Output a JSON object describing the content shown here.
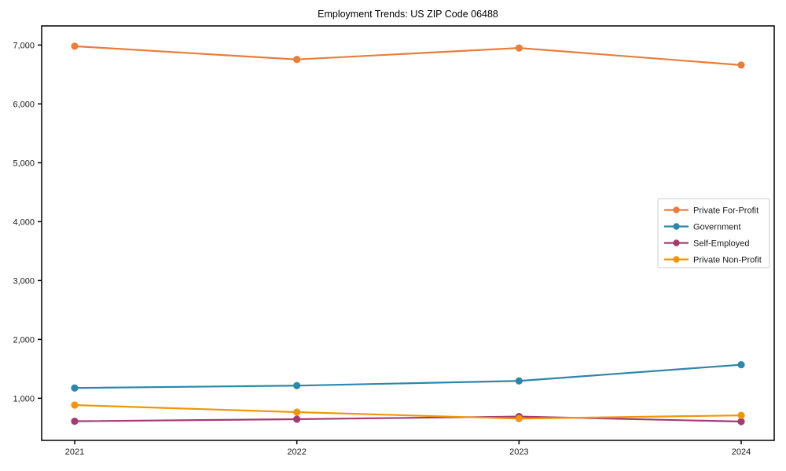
{
  "chart_data": {
    "type": "line",
    "title": "Employment Trends: US ZIP Code 06488",
    "xlabel": "",
    "ylabel": "",
    "categories": [
      "2021",
      "2022",
      "2023",
      "2024"
    ],
    "series": [
      {
        "name": "Private For-Profit",
        "color": "#E87D3C",
        "values": [
          6980,
          6755,
          6950,
          6660
        ]
      },
      {
        "name": "Government",
        "color": "#2E86AB",
        "values": [
          1175,
          1215,
          1295,
          1570
        ]
      },
      {
        "name": "Self-Employed",
        "color": "#A23B72",
        "values": [
          610,
          645,
          690,
          605
        ]
      },
      {
        "name": "Private Non-Profit",
        "color": "#F1960A",
        "values": [
          885,
          765,
          655,
          710
        ]
      }
    ],
    "ylim": [
      285,
      7325
    ],
    "yticks": [
      {
        "value": 1000,
        "label": "1,000"
      },
      {
        "value": 2000,
        "label": "2,000"
      },
      {
        "value": 3000,
        "label": "3,000"
      },
      {
        "value": 4000,
        "label": "4,000"
      },
      {
        "value": 5000,
        "label": "5,000"
      },
      {
        "value": 6000,
        "label": "6,000"
      },
      {
        "value": 7000,
        "label": "7,000"
      }
    ],
    "grid": false,
    "legend_position": "right-middle",
    "frame_color": "#000000",
    "legend_border_color": "#cccccc"
  }
}
